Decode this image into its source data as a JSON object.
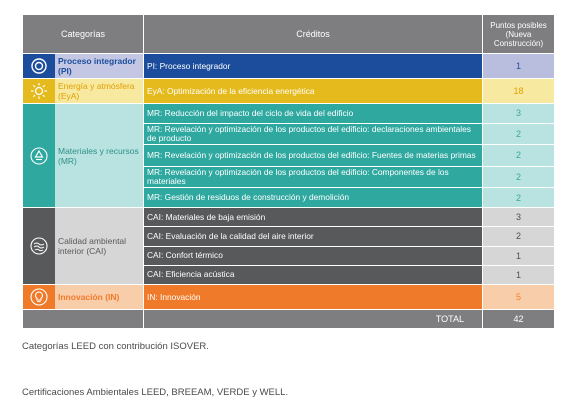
{
  "headers": {
    "categories": "Categorías",
    "credits": "Créditos",
    "points": "Puntos posibles (Nueva Construcción)"
  },
  "rows": [
    {
      "category": "Proceso integrador (PI)",
      "icon": "target-icon",
      "credits": [
        {
          "label": "PI: Proceso integrador",
          "points": "1"
        }
      ]
    },
    {
      "category": "Energía y atmósfera (EyA)",
      "icon": "sun-icon",
      "credits": [
        {
          "label": "EyA: Optimización de la eficiencia energética",
          "points": "18"
        }
      ]
    },
    {
      "category": "Materiales y recursos (MR)",
      "icon": "recycle-icon",
      "credits": [
        {
          "label": "MR: Reducción del impacto del ciclo de vida del edificio",
          "points": "3"
        },
        {
          "label": "MR: Revelación y optimización de los productos del edificio: declaraciones ambientales de producto",
          "points": "2"
        },
        {
          "label": "MR: Revelación y optimización de los productos del edificio: Fuentes de materias primas",
          "points": "2"
        },
        {
          "label": "MR: Revelación y optimización de los productos del edificio: Componentes de los materiales",
          "points": "2"
        },
        {
          "label": "MR: Gestión de residuos de construcción y demolición",
          "points": "2"
        }
      ]
    },
    {
      "category": "Calidad ambiental interior (CAI)",
      "icon": "air-flow-icon",
      "credits": [
        {
          "label": "CAI: Materiales de baja emisión",
          "points": "3"
        },
        {
          "label": "CAI: Evaluación de la calidad del aire interior",
          "points": "2"
        },
        {
          "label": "CAI: Confort térmico",
          "points": "1"
        },
        {
          "label": "CAI: Eficiencia acústica",
          "points": "1"
        }
      ]
    },
    {
      "category": "Innovación (IN)",
      "icon": "lightbulb-icon",
      "credits": [
        {
          "label": "IN: Innovación",
          "points": "5"
        }
      ]
    }
  ],
  "total": {
    "label": "TOTAL",
    "value": "42"
  },
  "captions": {
    "table": "Categorías LEED con contribución ISOVER.",
    "certifications": "Certificaciones Ambientales LEED, BREEAM, VERDE y WELL."
  },
  "colors": {
    "header": "#7e7e80",
    "pi": "#1b4d9c",
    "eya": "#e4ba1d",
    "mr": "#2fa8a0",
    "cai": "#58595b",
    "in": "#ef7b2a"
  }
}
